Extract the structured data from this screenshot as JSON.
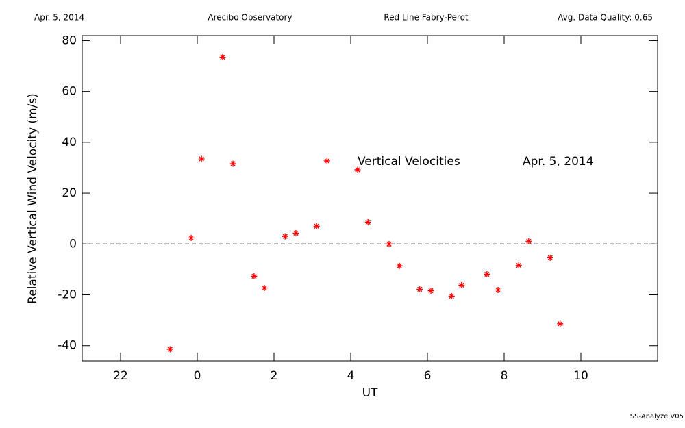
{
  "chart_data": {
    "type": "scatter",
    "header": [
      "Apr. 5, 2014",
      "Arecibo Observatory",
      "Red Line Fabry-Perot",
      "Avg. Data Quality: 0.65"
    ],
    "annotations": [
      "Vertical Velocities",
      "Apr. 5, 2014"
    ],
    "footer": "SS-Analyze V05",
    "x_label": "UT",
    "y_label": "Relative Vertical Wind Velocity (m/s)",
    "xlim": [
      -3,
      12
    ],
    "ylim": [
      -46,
      82
    ],
    "xticks": [
      {
        "value": -2,
        "label": "22"
      },
      0,
      2,
      4,
      6,
      8,
      10
    ],
    "yticks": [
      -40,
      -20,
      0,
      20,
      40,
      60,
      80
    ],
    "reference_line": 0,
    "series": [
      {
        "name": "Vertical Velocities",
        "color": "#ff0000",
        "x": [
          -0.71,
          -0.16,
          0.11,
          0.66,
          0.93,
          1.48,
          1.75,
          2.29,
          2.57,
          3.11,
          3.38,
          4.18,
          4.45,
          5.0,
          5.27,
          5.8,
          6.09,
          6.63,
          6.89,
          7.55,
          7.84,
          8.38,
          8.64,
          9.2,
          9.46
        ],
        "values": [
          -41.4,
          2.4,
          33.5,
          73.5,
          31.6,
          -12.7,
          -17.3,
          3.0,
          4.3,
          7.0,
          32.7,
          29.2,
          8.6,
          0,
          -8.6,
          -17.8,
          -18.4,
          -20.5,
          -16.2,
          -11.9,
          -18.1,
          -8.4,
          1.1,
          -5.4,
          -31.4
        ]
      }
    ]
  }
}
